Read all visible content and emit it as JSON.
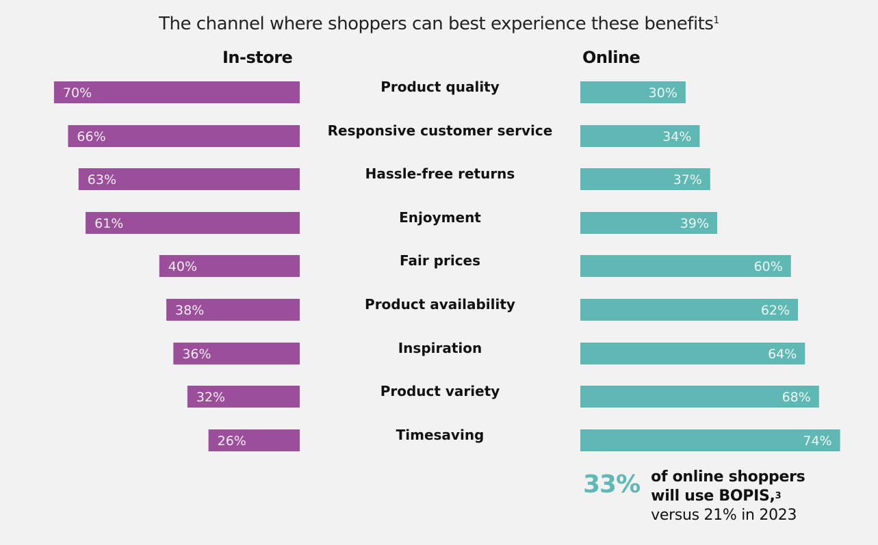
{
  "chart_data": {
    "type": "bar",
    "orientation": "horizontal-diverging",
    "title": "The channel where shoppers can best experience these benefits",
    "title_footnote": "1",
    "categories": [
      "Product quality",
      "Responsive customer service",
      "Hassle-free returns",
      "Enjoyment",
      "Fair prices",
      "Product availability",
      "Inspiration",
      "Product variety",
      "Timesaving"
    ],
    "series": [
      {
        "name": "In-store",
        "color": "#9b4f9b",
        "values": [
          70,
          66,
          63,
          61,
          40,
          38,
          36,
          32,
          26
        ],
        "side": "left"
      },
      {
        "name": "Online",
        "color": "#5fb8b3",
        "values": [
          30,
          34,
          37,
          39,
          60,
          62,
          64,
          68,
          74
        ],
        "side": "right"
      }
    ],
    "value_format": "percent",
    "xlim": [
      0,
      100
    ],
    "grid": false,
    "legend": "column headers at top"
  },
  "headers": {
    "left": "In-store",
    "right": "Online"
  },
  "callout": {
    "big_value": "33%",
    "line1": "of online shoppers",
    "line2": "will use BOPIS,",
    "line2_footnote": "3",
    "line3": "versus 21% in 2023"
  }
}
